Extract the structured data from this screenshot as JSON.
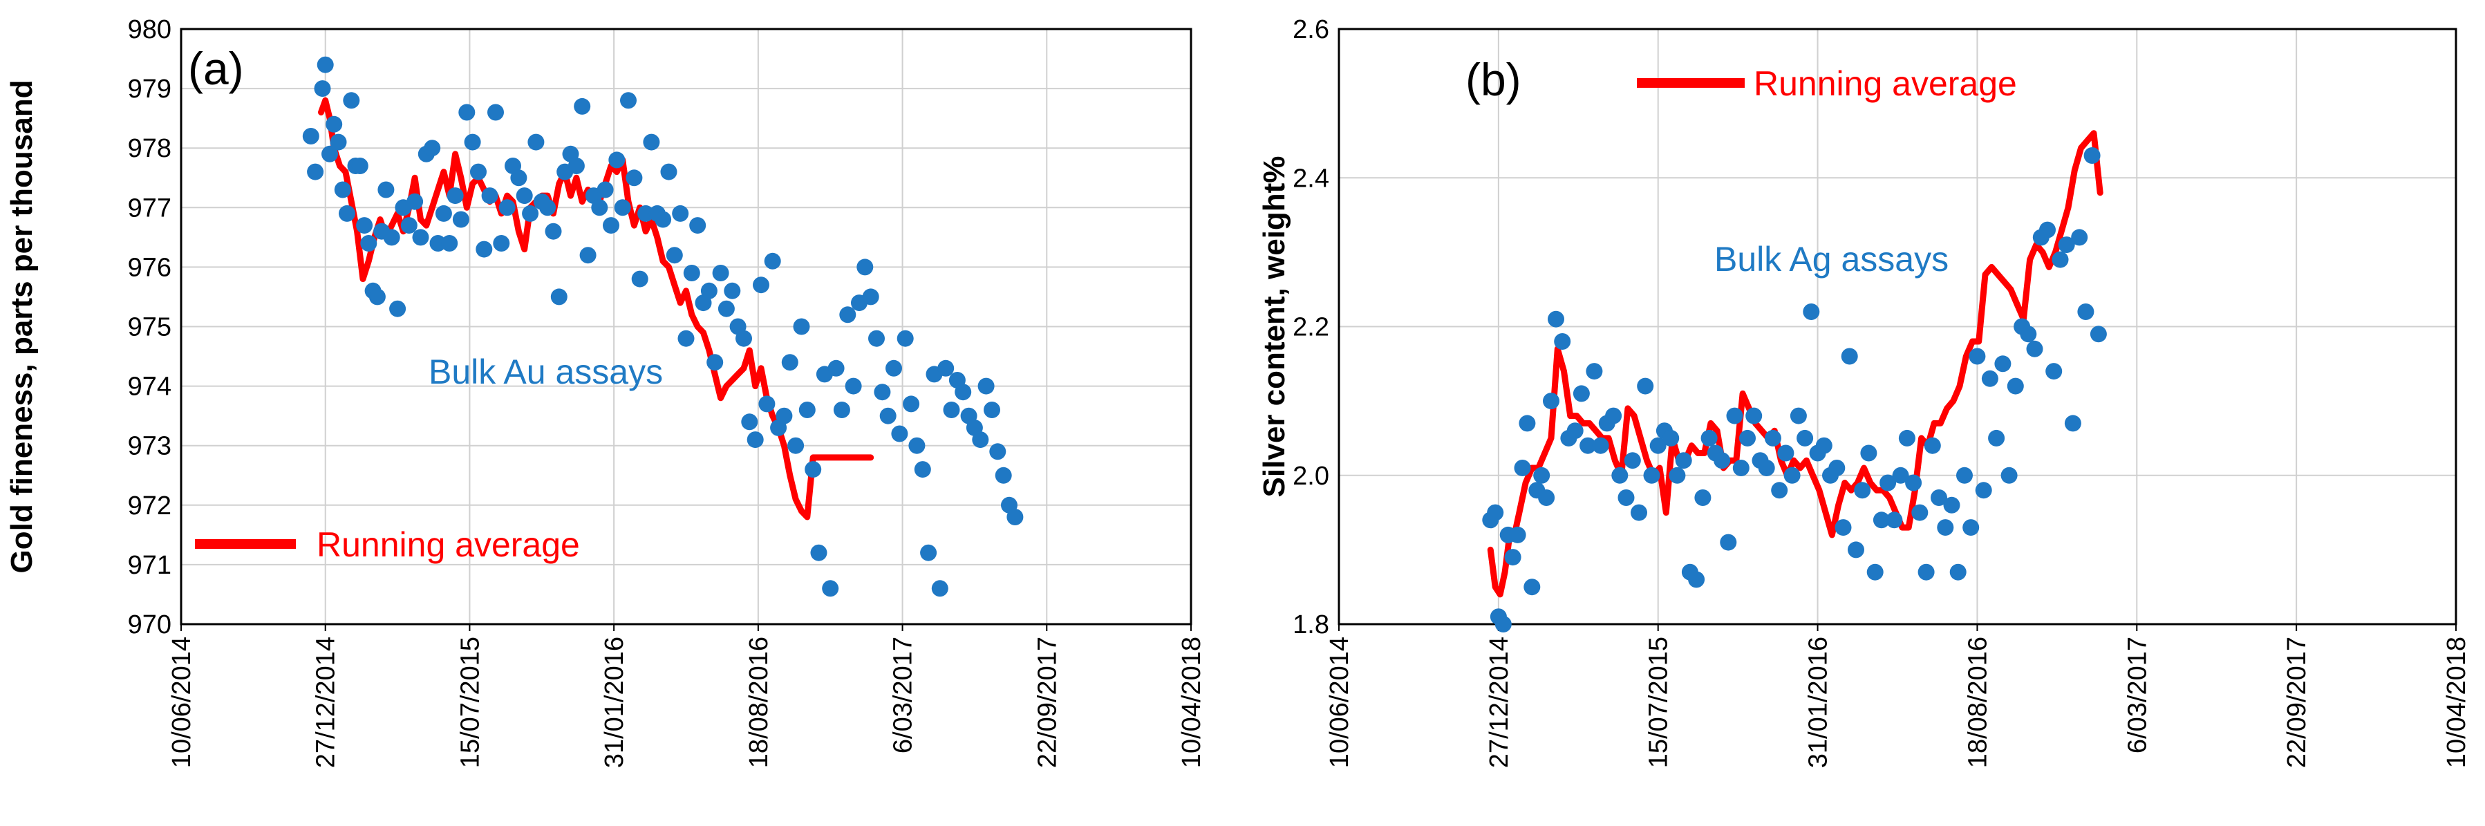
{
  "colors": {
    "running_average": "#ff0000",
    "assays": "#1f78c4",
    "annotation": "#1f7ac4",
    "grid": "#d0d0d0",
    "axis": "#000000"
  },
  "chart_data": [
    {
      "type": "scatter",
      "panel_label": "(a)",
      "title": "",
      "ylabel": "Gold fineness, parts per thousand",
      "xlabel": "",
      "ylim": [
        970,
        980
      ],
      "yticks": [
        "970",
        "971",
        "972",
        "973",
        "974",
        "975",
        "976",
        "977",
        "978",
        "979",
        "980"
      ],
      "xticks": [
        "10/06/2014",
        "27/12/2014",
        "15/07/2015",
        "31/01/2016",
        "18/08/2016",
        "6/03/2017",
        "22/09/2017",
        "10/04/2018"
      ],
      "grid": true,
      "legend": {
        "label": "Running average",
        "placement": "bottom-left"
      },
      "annotation": "Bulk Au assays",
      "series": [
        {
          "name": "Bulk Au assays",
          "kind": "scatter",
          "x": [
            0.9,
            0.93,
            0.98,
            1.0,
            1.03,
            1.06,
            1.09,
            1.12,
            1.15,
            1.18,
            1.21,
            1.24,
            1.27,
            1.3,
            1.33,
            1.36,
            1.39,
            1.42,
            1.46,
            1.5,
            1.54,
            1.58,
            1.62,
            1.66,
            1.7,
            1.74,
            1.78,
            1.82,
            1.86,
            1.9,
            1.94,
            1.98,
            2.02,
            2.06,
            2.1,
            2.14,
            2.18,
            2.22,
            2.26,
            2.3,
            2.34,
            2.38,
            2.42,
            2.46,
            2.5,
            2.54,
            2.58,
            2.62,
            2.66,
            2.7,
            2.74,
            2.78,
            2.82,
            2.86,
            2.9,
            2.94,
            2.98,
            3.02,
            3.06,
            3.1,
            3.14,
            3.18,
            3.22,
            3.26,
            3.3,
            3.34,
            3.38,
            3.42,
            3.46,
            3.5,
            3.54,
            3.58,
            3.62,
            3.66,
            3.7,
            3.74,
            3.78,
            3.82,
            3.86,
            3.9,
            3.94,
            3.98,
            4.02,
            4.06,
            4.1,
            4.14,
            4.18,
            4.22,
            4.26,
            4.3,
            4.34,
            4.38,
            4.42,
            4.46,
            4.5,
            4.54,
            4.58,
            4.62,
            4.66,
            4.7,
            4.74,
            4.78,
            4.82,
            4.86,
            4.9,
            4.94,
            4.98,
            5.02,
            5.06,
            5.1,
            5.14,
            5.18,
            5.22,
            5.26,
            5.3,
            5.34,
            5.38,
            5.42,
            5.46,
            5.5,
            5.54,
            5.58,
            5.62,
            5.66,
            5.7,
            5.74,
            5.78
          ],
          "y": [
            978.2,
            977.6,
            979.0,
            979.4,
            977.9,
            978.4,
            978.1,
            977.3,
            976.9,
            978.8,
            977.7,
            977.7,
            976.7,
            976.4,
            975.6,
            975.5,
            976.6,
            977.3,
            976.5,
            975.3,
            977.0,
            976.7,
            977.1,
            976.5,
            977.9,
            978.0,
            976.4,
            976.9,
            976.4,
            977.2,
            976.8,
            978.6,
            978.1,
            977.6,
            976.3,
            977.2,
            978.6,
            976.4,
            977.0,
            977.7,
            977.5,
            977.2,
            976.9,
            978.1,
            977.1,
            977.0,
            976.6,
            975.5,
            977.6,
            977.9,
            977.7,
            978.7,
            976.2,
            977.2,
            977.0,
            977.3,
            976.7,
            977.8,
            977.0,
            978.8,
            977.5,
            975.8,
            976.9,
            978.1,
            976.9,
            976.8,
            977.6,
            976.2,
            976.9,
            974.8,
            975.9,
            976.7,
            975.4,
            975.6,
            974.4,
            975.9,
            975.3,
            975.6,
            975.0,
            974.8,
            973.4,
            973.1,
            975.7,
            973.7,
            976.1,
            973.3,
            973.5,
            974.4,
            973.0,
            975.0,
            973.6,
            972.6,
            971.2,
            974.2,
            970.6,
            974.3,
            973.6,
            975.2,
            974.0,
            975.4,
            976.0,
            975.5,
            974.8,
            973.9,
            973.5,
            974.3,
            973.2,
            974.8,
            973.7,
            973.0,
            972.6,
            971.2,
            974.2,
            970.6,
            974.3,
            973.6,
            974.1,
            973.9,
            973.5,
            973.3,
            973.1,
            974.0,
            973.6,
            972.9,
            972.5,
            972.0,
            971.8
          ]
        },
        {
          "name": "Running average",
          "kind": "line",
          "x": [
            0.97,
            1.0,
            1.03,
            1.06,
            1.1,
            1.14,
            1.18,
            1.22,
            1.26,
            1.3,
            1.34,
            1.38,
            1.42,
            1.46,
            1.5,
            1.54,
            1.58,
            1.62,
            1.66,
            1.7,
            1.74,
            1.78,
            1.82,
            1.86,
            1.9,
            1.94,
            1.98,
            2.02,
            2.06,
            2.1,
            2.14,
            2.18,
            2.22,
            2.26,
            2.3,
            2.34,
            2.38,
            2.42,
            2.46,
            2.5,
            2.54,
            2.58,
            2.62,
            2.66,
            2.7,
            2.74,
            2.78,
            2.82,
            2.86,
            2.9,
            2.94,
            2.98,
            3.02,
            3.06,
            3.1,
            3.14,
            3.18,
            3.22,
            3.26,
            3.3,
            3.34,
            3.38,
            3.42,
            3.46,
            3.5,
            3.54,
            3.58,
            3.62,
            3.66,
            3.7,
            3.74,
            3.78,
            3.82,
            3.86,
            3.9,
            3.94,
            3.98,
            4.02,
            4.06,
            4.1,
            4.14,
            4.18,
            4.22,
            4.26,
            4.3,
            4.34,
            4.38,
            4.42,
            4.46,
            4.5,
            4.54,
            4.58,
            4.62,
            4.66,
            4.7,
            4.74,
            4.78
          ],
          "y": [
            978.6,
            978.8,
            978.5,
            978.0,
            977.7,
            977.6,
            977.1,
            976.6,
            975.8,
            976.1,
            976.5,
            976.8,
            976.5,
            976.7,
            976.9,
            976.6,
            977.0,
            977.5,
            976.8,
            976.7,
            977.0,
            977.3,
            977.6,
            977.2,
            977.9,
            977.5,
            977.0,
            977.4,
            977.5,
            977.3,
            977.1,
            977.2,
            976.9,
            977.2,
            977.1,
            976.6,
            976.3,
            977.0,
            977.1,
            977.2,
            977.2,
            976.9,
            977.4,
            977.6,
            977.2,
            977.5,
            977.1,
            977.3,
            977.2,
            977.1,
            977.4,
            977.7,
            977.6,
            977.8,
            977.1,
            976.7,
            977.0,
            976.6,
            976.8,
            976.5,
            976.1,
            976.0,
            975.7,
            975.4,
            975.6,
            975.2,
            975.0,
            974.9,
            974.6,
            974.2,
            973.8,
            974.0,
            974.1,
            974.2,
            974.3,
            974.6,
            974.0,
            974.3,
            973.8,
            973.5,
            973.3,
            973.0,
            972.5,
            972.1,
            971.9,
            971.8,
            972.8,
            972.8,
            972.8,
            972.8,
            972.8,
            972.8,
            972.8,
            972.8,
            972.8,
            972.8,
            972.8
          ]
        }
      ]
    },
    {
      "type": "scatter",
      "panel_label": "(b)",
      "title": "",
      "ylabel": "Silver content, weight%",
      "xlabel": "",
      "ylim": [
        1.8,
        2.6
      ],
      "yticks": [
        "1.8",
        "2.0",
        "2.2",
        "2.4",
        "2.6"
      ],
      "xticks": [
        "10/06/2014",
        "27/12/2014",
        "15/07/2015",
        "31/01/2016",
        "18/08/2016",
        "6/03/2017",
        "22/09/2017",
        "10/04/2018"
      ],
      "grid": true,
      "legend": {
        "label": "Running average",
        "placement": "top-left"
      },
      "annotation": "Bulk Ag assays",
      "series": [
        {
          "name": "Bulk Ag assays",
          "kind": "scatter",
          "x": [
            0.95,
            0.98,
            1.0,
            1.03,
            1.06,
            1.09,
            1.12,
            1.15,
            1.18,
            1.21,
            1.24,
            1.27,
            1.3,
            1.33,
            1.36,
            1.4,
            1.44,
            1.48,
            1.52,
            1.56,
            1.6,
            1.64,
            1.68,
            1.72,
            1.76,
            1.8,
            1.84,
            1.88,
            1.92,
            1.96,
            2.0,
            2.04,
            2.08,
            2.12,
            2.16,
            2.2,
            2.24,
            2.28,
            2.32,
            2.36,
            2.4,
            2.44,
            2.48,
            2.52,
            2.56,
            2.6,
            2.64,
            2.68,
            2.72,
            2.76,
            2.8,
            2.84,
            2.88,
            2.92,
            2.96,
            3.0,
            3.04,
            3.08,
            3.12,
            3.16,
            3.2,
            3.24,
            3.28,
            3.32,
            3.36,
            3.4,
            3.44,
            3.48,
            3.52,
            3.56,
            3.6,
            3.64,
            3.68,
            3.72,
            3.76,
            3.8,
            3.84,
            3.88,
            3.92,
            3.96,
            4.0,
            4.04,
            4.08,
            4.12,
            4.16,
            4.2,
            4.24,
            4.28,
            4.32,
            4.36,
            4.4,
            4.44,
            4.48,
            4.52,
            4.56,
            4.6,
            4.64,
            4.68,
            4.72,
            4.76
          ],
          "y": [
            1.94,
            1.95,
            1.81,
            1.8,
            1.92,
            1.89,
            1.92,
            2.01,
            2.07,
            1.85,
            1.98,
            2.0,
            1.97,
            2.1,
            2.21,
            2.18,
            2.05,
            2.06,
            2.11,
            2.04,
            2.14,
            2.04,
            2.07,
            2.08,
            2.0,
            1.97,
            2.02,
            1.95,
            2.12,
            2.0,
            2.04,
            2.06,
            2.05,
            2.0,
            2.02,
            1.87,
            1.86,
            1.97,
            2.05,
            2.03,
            2.02,
            1.91,
            2.08,
            2.01,
            2.05,
            2.08,
            2.02,
            2.01,
            2.05,
            1.98,
            2.03,
            2.0,
            2.08,
            2.05,
            2.22,
            2.03,
            2.04,
            2.0,
            2.01,
            1.93,
            2.16,
            1.9,
            1.98,
            2.03,
            1.87,
            1.94,
            1.99,
            1.94,
            2.0,
            2.05,
            1.99,
            1.95,
            1.87,
            2.04,
            1.97,
            1.93,
            1.96,
            1.87,
            2.0,
            1.93,
            2.16,
            1.98,
            2.13,
            2.05,
            2.15,
            2.0,
            2.12,
            2.2,
            2.19,
            2.17,
            2.32,
            2.33,
            2.14,
            2.29,
            2.31,
            2.07,
            2.32,
            2.22,
            2.43,
            2.19
          ]
        },
        {
          "name": "Running average",
          "kind": "line",
          "x": [
            0.95,
            0.98,
            1.01,
            1.04,
            1.07,
            1.1,
            1.13,
            1.17,
            1.21,
            1.25,
            1.29,
            1.33,
            1.37,
            1.41,
            1.45,
            1.49,
            1.53,
            1.57,
            1.61,
            1.65,
            1.69,
            1.73,
            1.77,
            1.81,
            1.85,
            1.89,
            1.93,
            1.97,
            2.01,
            2.05,
            2.09,
            2.13,
            2.17,
            2.21,
            2.25,
            2.29,
            2.33,
            2.37,
            2.41,
            2.45,
            2.49,
            2.53,
            2.57,
            2.61,
            2.65,
            2.69,
            2.73,
            2.77,
            2.81,
            2.85,
            2.89,
            2.93,
            2.97,
            3.01,
            3.05,
            3.09,
            3.13,
            3.17,
            3.21,
            3.25,
            3.29,
            3.33,
            3.37,
            3.41,
            3.45,
            3.49,
            3.53,
            3.57,
            3.61,
            3.65,
            3.69,
            3.73,
            3.77,
            3.81,
            3.85,
            3.89,
            3.93,
            3.97,
            4.01,
            4.05,
            4.09,
            4.13,
            4.17,
            4.21,
            4.25,
            4.29,
            4.33,
            4.37,
            4.41,
            4.45,
            4.49,
            4.53,
            4.57,
            4.61,
            4.65,
            4.69,
            4.73,
            4.77
          ],
          "y": [
            1.9,
            1.85,
            1.84,
            1.87,
            1.92,
            1.92,
            1.95,
            1.99,
            2.01,
            2.01,
            2.03,
            2.05,
            2.17,
            2.14,
            2.08,
            2.08,
            2.07,
            2.07,
            2.06,
            2.05,
            2.05,
            2.02,
            2.0,
            2.09,
            2.08,
            2.05,
            2.02,
            2.0,
            2.01,
            1.95,
            2.05,
            2.02,
            2.02,
            2.04,
            2.03,
            2.03,
            2.07,
            2.06,
            2.01,
            2.02,
            2.02,
            2.11,
            2.09,
            2.07,
            2.06,
            2.05,
            2.06,
            2.02,
            2.0,
            2.02,
            2.01,
            2.02,
            2.0,
            1.98,
            1.95,
            1.92,
            1.96,
            1.99,
            1.98,
            1.99,
            2.01,
            1.99,
            1.98,
            1.98,
            1.97,
            1.95,
            1.93,
            1.93,
            1.98,
            2.05,
            2.04,
            2.07,
            2.07,
            2.09,
            2.1,
            2.12,
            2.16,
            2.18,
            2.18,
            2.27,
            2.28,
            2.27,
            2.26,
            2.25,
            2.23,
            2.21,
            2.29,
            2.31,
            2.3,
            2.28,
            2.3,
            2.33,
            2.36,
            2.41,
            2.44,
            2.45,
            2.46,
            2.38
          ]
        }
      ]
    }
  ]
}
